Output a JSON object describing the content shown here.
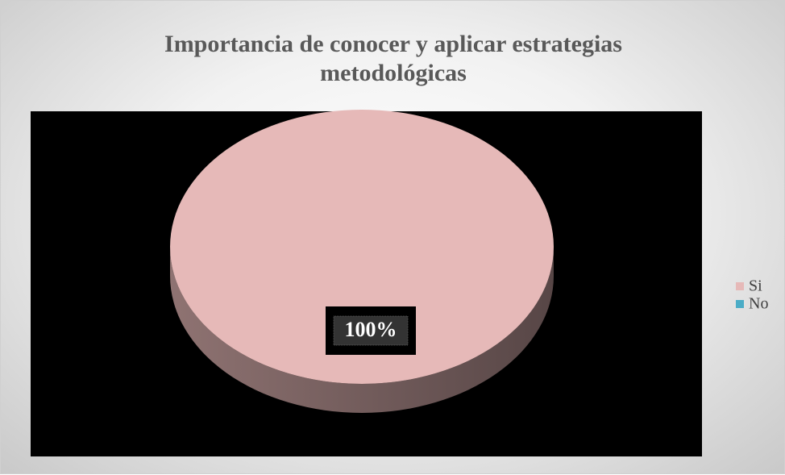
{
  "chart_data": {
    "type": "pie",
    "title": "Importancia de conocer y aplicar estrategias metodológicas",
    "categories": [
      "Si",
      "No"
    ],
    "values": [
      100,
      0
    ],
    "value_labels": [
      "100%",
      null
    ],
    "colors": [
      "#e6b9b8",
      "#4bacc6"
    ],
    "legend": "right"
  }
}
